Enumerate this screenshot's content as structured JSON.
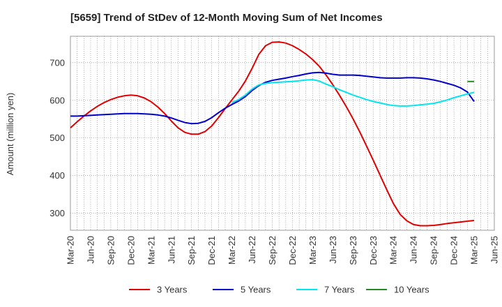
{
  "chart_data": {
    "type": "line",
    "title": "[5659]  Trend of StDev of 12-Month Moving Sum of Net Incomes",
    "ylabel": "Amount (million yen)",
    "xlabel": "",
    "ylim": [
      255,
      770
    ],
    "yticks": [
      300,
      400,
      500,
      600,
      700
    ],
    "x_ticks": [
      "Mar-20",
      "Jun-20",
      "Sep-20",
      "Dec-20",
      "Mar-21",
      "Jun-21",
      "Sep-21",
      "Dec-21",
      "Mar-22",
      "Jun-22",
      "Sep-22",
      "Dec-22",
      "Mar-23",
      "Jun-23",
      "Sep-23",
      "Dec-23",
      "Mar-24",
      "Jun-24",
      "Sep-24",
      "Dec-24",
      "Mar-25",
      "Jun-25"
    ],
    "grid": true,
    "legend_position": "bottom",
    "series": [
      {
        "name": "3 Years",
        "color": "#e00000",
        "x": [
          "Mar-20",
          "Apr-20",
          "May-20",
          "Jun-20",
          "Jul-20",
          "Aug-20",
          "Sep-20",
          "Oct-20",
          "Nov-20",
          "Dec-20",
          "Jan-21",
          "Feb-21",
          "Mar-21",
          "Apr-21",
          "May-21",
          "Jun-21",
          "Jul-21",
          "Aug-21",
          "Sep-21",
          "Oct-21",
          "Nov-21",
          "Dec-21",
          "Jan-22",
          "Feb-22",
          "Mar-22",
          "Apr-22",
          "May-22",
          "Jun-22",
          "Jul-22",
          "Aug-22",
          "Sep-22",
          "Oct-22",
          "Nov-22",
          "Dec-22",
          "Jan-23",
          "Feb-23",
          "Mar-23",
          "Apr-23",
          "May-23",
          "Jun-23",
          "Jul-23",
          "Aug-23",
          "Sep-23",
          "Oct-23",
          "Nov-23",
          "Dec-23",
          "Jan-24",
          "Feb-24",
          "Mar-24",
          "Apr-24",
          "May-24",
          "Jun-24",
          "Jul-24",
          "Aug-24",
          "Sep-24",
          "Oct-24",
          "Nov-24",
          "Dec-24",
          "Jan-25",
          "Feb-25",
          "Mar-25"
        ],
        "values": [
          527,
          543,
          558,
          572,
          584,
          594,
          602,
          608,
          612,
          614,
          612,
          606,
          596,
          582,
          565,
          545,
          527,
          515,
          510,
          510,
          517,
          532,
          554,
          578,
          601,
          624,
          651,
          685,
          722,
          745,
          754,
          755,
          752,
          745,
          735,
          723,
          708,
          690,
          667,
          641,
          613,
          583,
          551,
          516,
          479,
          441,
          402,
          363,
          326,
          297,
          280,
          270,
          267,
          267,
          268,
          270,
          273,
          275,
          277,
          279,
          281
        ]
      },
      {
        "name": "5 Years",
        "color": "#0000cc",
        "x": [
          "Mar-20",
          "Apr-20",
          "May-20",
          "Jun-20",
          "Jul-20",
          "Aug-20",
          "Sep-20",
          "Oct-20",
          "Nov-20",
          "Dec-20",
          "Jan-21",
          "Feb-21",
          "Mar-21",
          "Apr-21",
          "May-21",
          "Jun-21",
          "Jul-21",
          "Aug-21",
          "Sep-21",
          "Oct-21",
          "Nov-21",
          "Dec-21",
          "Jan-22",
          "Feb-22",
          "Mar-22",
          "Apr-22",
          "May-22",
          "Jun-22",
          "Jul-22",
          "Aug-22",
          "Sep-22",
          "Oct-22",
          "Nov-22",
          "Dec-22",
          "Jan-23",
          "Feb-23",
          "Mar-23",
          "Apr-23",
          "May-23",
          "Jun-23",
          "Jul-23",
          "Aug-23",
          "Sep-23",
          "Oct-23",
          "Nov-23",
          "Dec-23",
          "Jan-24",
          "Feb-24",
          "Mar-24",
          "Apr-24",
          "May-24",
          "Jun-24",
          "Jul-24",
          "Aug-24",
          "Sep-24",
          "Oct-24",
          "Nov-24",
          "Dec-24",
          "Jan-25",
          "Feb-25",
          "Mar-25"
        ],
        "values": [
          558,
          558,
          559,
          560,
          561,
          562,
          563,
          564,
          565,
          565,
          565,
          564,
          563,
          561,
          558,
          553,
          547,
          541,
          538,
          539,
          544,
          554,
          567,
          579,
          589,
          598,
          610,
          626,
          639,
          648,
          653,
          656,
          659,
          663,
          666,
          670,
          673,
          674,
          672,
          669,
          667,
          667,
          667,
          666,
          664,
          662,
          660,
          659,
          659,
          659,
          660,
          660,
          659,
          657,
          654,
          650,
          645,
          640,
          633,
          622,
          597
        ]
      },
      {
        "name": "7 Years",
        "color": "#00e5ee",
        "x": [
          "Mar-22",
          "Apr-22",
          "May-22",
          "Jun-22",
          "Jul-22",
          "Aug-22",
          "Sep-22",
          "Oct-22",
          "Nov-22",
          "Dec-22",
          "Jan-23",
          "Feb-23",
          "Mar-23",
          "Apr-23",
          "May-23",
          "Jun-23",
          "Jul-23",
          "Aug-23",
          "Sep-23",
          "Oct-23",
          "Nov-23",
          "Dec-23",
          "Jan-24",
          "Feb-24",
          "Mar-24",
          "Apr-24",
          "May-24",
          "Jun-24",
          "Jul-24",
          "Aug-24",
          "Sep-24",
          "Oct-24",
          "Nov-24",
          "Dec-24",
          "Jan-25",
          "Feb-25",
          "Mar-25"
        ],
        "values": [
          594,
          602,
          614,
          630,
          641,
          645,
          647,
          648,
          649,
          650,
          652,
          654,
          655,
          651,
          643,
          636,
          628,
          621,
          614,
          608,
          602,
          597,
          593,
          589,
          586,
          585,
          585,
          586,
          588,
          590,
          592,
          596,
          601,
          607,
          612,
          617,
          621
        ]
      },
      {
        "name": "10 Years",
        "color": "#228b22",
        "x": [
          "Feb-25",
          "Mar-25"
        ],
        "values": [
          650,
          650
        ]
      }
    ]
  }
}
